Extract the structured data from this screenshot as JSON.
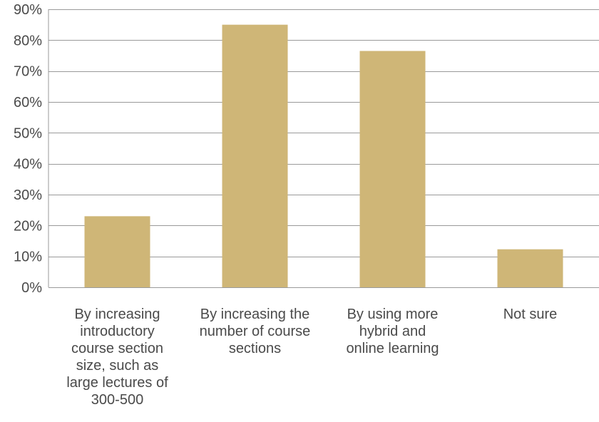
{
  "chart_data": {
    "type": "bar",
    "title": "",
    "xlabel": "",
    "ylabel": "",
    "ylim": [
      0,
      90
    ],
    "yticks": [
      0,
      10,
      20,
      30,
      40,
      50,
      60,
      70,
      80,
      90
    ],
    "ytick_labels": [
      "0%",
      "10%",
      "20%",
      "30%",
      "40%",
      "50%",
      "60%",
      "70%",
      "80%",
      "90%"
    ],
    "grid": true,
    "legend": "none",
    "bar_color": "#cfb677",
    "categories": [
      "By increasing introductory course section size, such as large lectures of 300-500",
      "By increasing the number of course sections",
      "By using more hybrid and online learning",
      "Not sure"
    ],
    "category_label_lines": [
      [
        "By increasing",
        "introductory",
        "course section",
        "size, such as",
        "large lectures of",
        "300-500"
      ],
      [
        "By increasing the",
        "number of course",
        "sections"
      ],
      [
        "By using more",
        "hybrid and",
        "online learning"
      ],
      [
        "Not sure"
      ]
    ],
    "values": [
      23,
      85,
      76.5,
      12.3
    ]
  }
}
